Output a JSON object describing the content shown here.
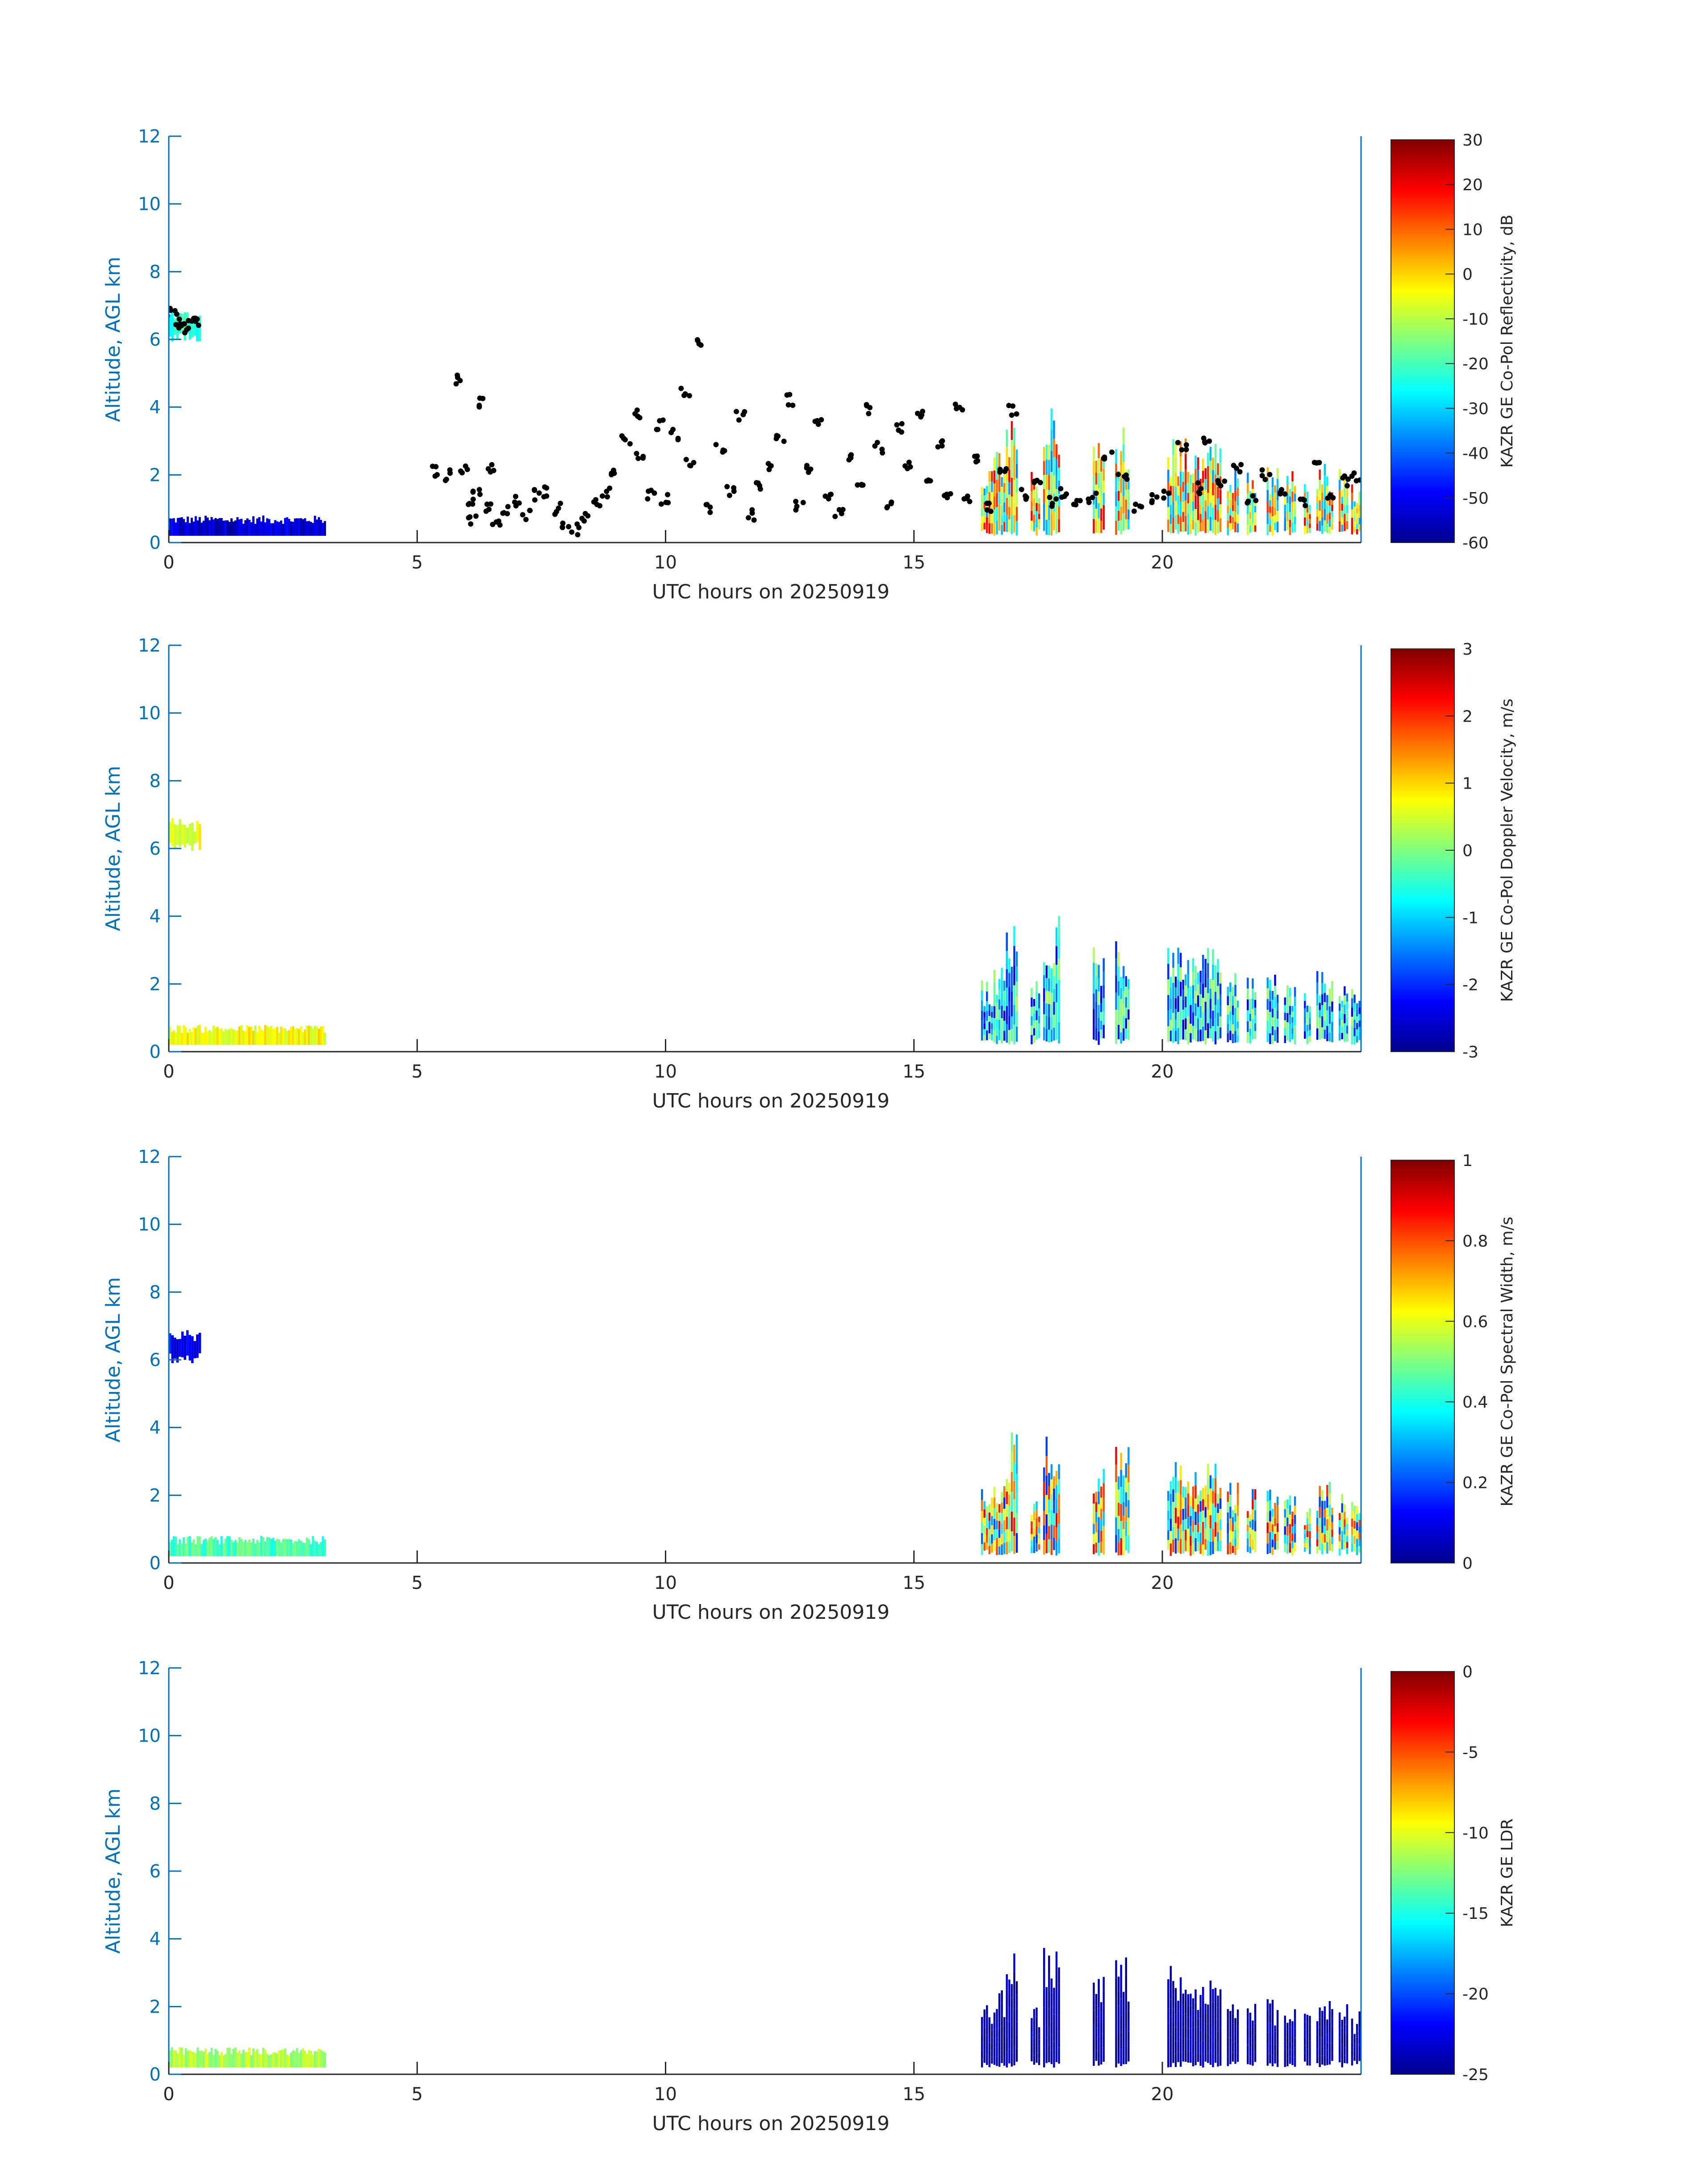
{
  "figure": {
    "colors": {
      "axis_y": "#0072BD",
      "axis_x": "#262626",
      "text_dark": "#262626",
      "scatter": "#000000"
    },
    "colormap": "jet"
  },
  "chart_data": [
    {
      "type": "heatmap",
      "xlabel": "UTC hours on 20250919",
      "ylabel": "Altitude, AGL km",
      "xlim": [
        0,
        24
      ],
      "ylim": [
        0,
        12
      ],
      "x_ticks": [
        "0",
        "5",
        "10",
        "15",
        "20"
      ],
      "y_ticks": [
        "0",
        "2",
        "4",
        "6",
        "8",
        "10",
        "12"
      ],
      "colorbar": {
        "label": "KAZR GE Co-Pol Reflectivity, dB",
        "range": [
          -60,
          30
        ],
        "ticks": [
          "-60",
          "-50",
          "-40",
          "-30",
          "-20",
          "-10",
          "0",
          "10",
          "20",
          "30"
        ]
      },
      "scatter_overlay": true,
      "scatter_points": [
        [
          0.05,
          6.8
        ],
        [
          0.15,
          6.6
        ],
        [
          0.25,
          6.4
        ],
        [
          0.35,
          6.3
        ],
        [
          0.45,
          6.6
        ],
        [
          0.55,
          6.5
        ],
        [
          5.4,
          2.1
        ],
        [
          5.6,
          2.0
        ],
        [
          5.8,
          4.8
        ],
        [
          5.95,
          2.2
        ],
        [
          6.05,
          1.3
        ],
        [
          6.1,
          0.7
        ],
        [
          6.2,
          1.5
        ],
        [
          6.3,
          4.1
        ],
        [
          6.4,
          1.0
        ],
        [
          6.5,
          2.2
        ],
        [
          6.6,
          0.5
        ],
        [
          6.8,
          0.9
        ],
        [
          7.0,
          1.2
        ],
        [
          7.2,
          0.8
        ],
        [
          7.4,
          1.4
        ],
        [
          7.6,
          1.5
        ],
        [
          7.8,
          1.0
        ],
        [
          8.0,
          0.6
        ],
        [
          8.2,
          0.4
        ],
        [
          8.4,
          0.7
        ],
        [
          8.6,
          1.2
        ],
        [
          8.8,
          1.5
        ],
        [
          9.0,
          2.0
        ],
        [
          9.2,
          3.0
        ],
        [
          9.4,
          3.8
        ],
        [
          9.5,
          2.5
        ],
        [
          9.7,
          1.4
        ],
        [
          9.9,
          3.5
        ],
        [
          10.0,
          1.3
        ],
        [
          10.2,
          3.2
        ],
        [
          10.4,
          4.5
        ],
        [
          10.5,
          2.3
        ],
        [
          10.7,
          6.0
        ],
        [
          10.9,
          1.0
        ],
        [
          11.1,
          2.8
        ],
        [
          11.3,
          1.5
        ],
        [
          11.5,
          3.7
        ],
        [
          11.7,
          0.8
        ],
        [
          11.9,
          1.7
        ],
        [
          12.1,
          2.3
        ],
        [
          12.3,
          3.1
        ],
        [
          12.5,
          4.2
        ],
        [
          12.7,
          1.1
        ],
        [
          12.9,
          2.1
        ],
        [
          13.1,
          3.5
        ],
        [
          13.3,
          1.3
        ],
        [
          13.5,
          0.9
        ],
        [
          13.7,
          2.5
        ],
        [
          13.9,
          1.6
        ],
        [
          14.1,
          3.9
        ],
        [
          14.3,
          2.8
        ],
        [
          14.5,
          1.2
        ],
        [
          14.7,
          3.4
        ],
        [
          14.9,
          2.2
        ],
        [
          15.1,
          3.7
        ],
        [
          15.3,
          1.8
        ],
        [
          15.5,
          2.9
        ],
        [
          15.7,
          1.5
        ],
        [
          15.9,
          4.0
        ],
        [
          16.1,
          1.2
        ],
        [
          16.3,
          2.5
        ],
        [
          16.5,
          1.0
        ],
        [
          16.8,
          2.2
        ],
        [
          17.0,
          3.9
        ],
        [
          17.2,
          1.4
        ],
        [
          17.5,
          1.9
        ],
        [
          17.8,
          1.2
        ],
        [
          18.0,
          1.5
        ],
        [
          18.3,
          1.1
        ],
        [
          18.6,
          1.3
        ],
        [
          18.9,
          2.6
        ],
        [
          19.2,
          1.9
        ],
        [
          19.5,
          1.0
        ],
        [
          19.8,
          1.3
        ],
        [
          20.1,
          1.4
        ],
        [
          20.4,
          2.8
        ],
        [
          20.7,
          1.6
        ],
        [
          20.9,
          3.1
        ],
        [
          21.2,
          1.7
        ],
        [
          21.5,
          2.2
        ],
        [
          21.8,
          1.3
        ],
        [
          22.1,
          2.0
        ],
        [
          22.4,
          1.6
        ],
        [
          22.8,
          1.2
        ],
        [
          23.1,
          2.2
        ],
        [
          23.4,
          1.4
        ],
        [
          23.7,
          1.8
        ],
        [
          23.9,
          1.9
        ]
      ]
    },
    {
      "type": "heatmap",
      "xlabel": "UTC hours on 20250919",
      "ylabel": "Altitude, AGL km",
      "xlim": [
        0,
        24
      ],
      "ylim": [
        0,
        12
      ],
      "x_ticks": [
        "0",
        "5",
        "10",
        "15",
        "20"
      ],
      "y_ticks": [
        "0",
        "2",
        "4",
        "6",
        "8",
        "10",
        "12"
      ],
      "colorbar": {
        "label": "KAZR GE Co-Pol Doppler Velocity, m/s",
        "range": [
          -3,
          3
        ],
        "ticks": [
          "-3",
          "-2",
          "-1",
          "0",
          "1",
          "2",
          "3"
        ]
      },
      "scatter_overlay": false
    },
    {
      "type": "heatmap",
      "xlabel": "UTC hours on 20250919",
      "ylabel": "Altitude, AGL km",
      "xlim": [
        0,
        24
      ],
      "ylim": [
        0,
        12
      ],
      "x_ticks": [
        "0",
        "5",
        "10",
        "15",
        "20"
      ],
      "y_ticks": [
        "0",
        "2",
        "4",
        "6",
        "8",
        "10",
        "12"
      ],
      "colorbar": {
        "label": "KAZR GE Co-Pol Spectral Width, m/s",
        "range": [
          0,
          1
        ],
        "ticks": [
          "0",
          "0.2",
          "0.4",
          "0.6",
          "0.8",
          "1"
        ]
      },
      "scatter_overlay": false
    },
    {
      "type": "heatmap",
      "xlabel": "UTC hours on 20250919",
      "ylabel": "Altitude, AGL km",
      "xlim": [
        0,
        24
      ],
      "ylim": [
        0,
        12
      ],
      "x_ticks": [
        "0",
        "5",
        "10",
        "15",
        "20"
      ],
      "y_ticks": [
        "0",
        "2",
        "4",
        "6",
        "8",
        "10",
        "12"
      ],
      "colorbar": {
        "label": "KAZR GE LDR",
        "range": [
          -25,
          0
        ],
        "ticks": [
          "-25",
          "-20",
          "-15",
          "-10",
          "-5",
          "0"
        ]
      },
      "scatter_overlay": false
    }
  ]
}
